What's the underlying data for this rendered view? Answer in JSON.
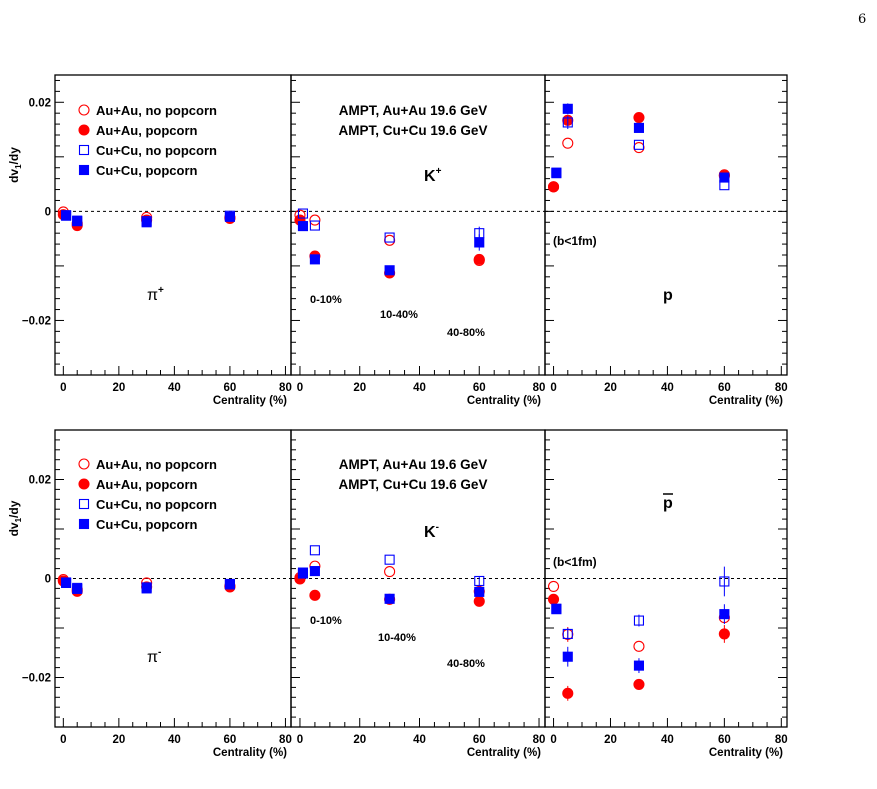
{
  "page_number": "6",
  "chart_data": {
    "type": "scatter",
    "x_ticks": [
      "0",
      "20",
      "40",
      "60",
      "80"
    ],
    "xlabel": "Centrality (%)",
    "ylabel": "dv1/dy",
    "ylabel_main": "dv",
    "ylabel_sub": "1",
    "ylabel_tail": "/dy",
    "xlim": [
      -3,
      82
    ],
    "legend_entries": [
      {
        "name": "Au+Au, no popcorn",
        "marker": "circle-open",
        "color": "#ff0000"
      },
      {
        "name": "Au+Au, popcorn",
        "marker": "circle-filled",
        "color": "#ff0000"
      },
      {
        "name": "Cu+Cu, no popcorn",
        "marker": "square-open",
        "color": "#0000ff"
      },
      {
        "name": "Cu+Cu, popcorn",
        "marker": "square-filled",
        "color": "#0000ff"
      }
    ],
    "model_labels": [
      {
        "text": "AMPT, Au+Au 19.6 GeV",
        "color": "#ff0000"
      },
      {
        "text": "AMPT, Cu+Cu 19.6 GeV",
        "color": "#0000ff"
      }
    ],
    "centrality_labels": [
      "0-10%",
      "10-40%",
      "40-80%"
    ],
    "impact_label": "(b<1fm)",
    "rows": [
      {
        "ylim": [
          -0.03,
          0.025
        ],
        "y_ticks": [
          {
            "v": 0.02,
            "label": "0.02"
          },
          {
            "v": 0,
            "label": "0"
          },
          {
            "v": -0.02,
            "label": "−0.02"
          }
        ],
        "panels": [
          {
            "particle": "π",
            "charge": "+",
            "annotations": [],
            "show_legend": true,
            "series": [
              {
                "name": "Au+Au, no popcorn",
                "x": [
                  0,
                  5,
                  30,
                  60
                ],
                "y": [
                  -0.0001,
                  -0.0022,
                  -0.0011,
                  -0.0011
                ],
                "err": [
                  0,
                  0,
                  0,
                  0
                ]
              },
              {
                "name": "Au+Au, popcorn",
                "x": [
                  0,
                  5,
                  30,
                  60
                ],
                "y": [
                  -0.0006,
                  -0.0026,
                  -0.0016,
                  -0.0013
                ],
                "err": [
                  0,
                  0,
                  0,
                  0
                ]
              },
              {
                "name": "Cu+Cu, no popcorn",
                "x": [
                  1,
                  5,
                  30,
                  60
                ],
                "y": [
                  -0.0007,
                  -0.0017,
                  -0.0018,
                  -0.0008
                ],
                "err": [
                  0,
                  0,
                  0,
                  0
                ]
              },
              {
                "name": "Cu+Cu, popcorn",
                "x": [
                  1,
                  5,
                  30,
                  60
                ],
                "y": [
                  -0.0008,
                  -0.0018,
                  -0.002,
                  -0.001
                ],
                "err": [
                  0,
                  0,
                  0,
                  0
                ]
              }
            ]
          },
          {
            "particle": "K",
            "charge": "+",
            "annotations": [
              "centrality",
              "model"
            ],
            "show_legend": false,
            "series": [
              {
                "name": "Au+Au, no popcorn",
                "x": [
                  0,
                  5,
                  30,
                  60
                ],
                "y": [
                  -0.0007,
                  -0.0016,
                  -0.0053,
                  -0.009
                ],
                "err": [
                  0,
                  0,
                  0,
                  0
                ]
              },
              {
                "name": "Au+Au, popcorn",
                "x": [
                  0,
                  5,
                  30,
                  60
                ],
                "y": [
                  -0.0016,
                  -0.0082,
                  -0.0113,
                  -0.0088
                ],
                "err": [
                  0,
                  0,
                  0,
                  0
                ]
              },
              {
                "name": "Cu+Cu, no popcorn",
                "x": [
                  1,
                  5,
                  30,
                  60
                ],
                "y": [
                  -0.0004,
                  -0.0026,
                  -0.0048,
                  -0.004
                ],
                "err": [
                  0,
                  0,
                  0,
                  0.0012
                ]
              },
              {
                "name": "Cu+Cu, popcorn",
                "x": [
                  1,
                  5,
                  30,
                  60
                ],
                "y": [
                  -0.0027,
                  -0.0088,
                  -0.0108,
                  -0.0057
                ],
                "err": [
                  0,
                  0,
                  0,
                  0.0015
                ]
              }
            ]
          },
          {
            "particle": "p",
            "charge": "",
            "annotations": [
              "impact"
            ],
            "show_legend": false,
            "series": [
              {
                "name": "Au+Au, no popcorn",
                "x": [
                  0,
                  5,
                  30,
                  60
                ],
                "y": [
                  0.0045,
                  0.0125,
                  0.0117,
                  0.0067
                ],
                "err": [
                  0,
                  0,
                  0,
                  0
                ]
              },
              {
                "name": "Au+Au, popcorn",
                "x": [
                  0,
                  5,
                  30,
                  60
                ],
                "y": [
                  0.0045,
                  0.0167,
                  0.0172,
                  0.0065
                ],
                "err": [
                  0,
                  0,
                  0,
                  0
                ]
              },
              {
                "name": "Cu+Cu, no popcorn",
                "x": [
                  1,
                  5,
                  30,
                  60
                ],
                "y": [
                  0.007,
                  0.0163,
                  0.0122,
                  0.0048
                ],
                "err": [
                  0,
                  0.0012,
                  0,
                  0
                ]
              },
              {
                "name": "Cu+Cu, popcorn",
                "x": [
                  1,
                  5,
                  30,
                  60
                ],
                "y": [
                  0.0071,
                  0.0188,
                  0.0153,
                  0.0062
                ],
                "err": [
                  0,
                  0.001,
                  0,
                  0
                ]
              }
            ]
          }
        ]
      },
      {
        "ylim": [
          -0.03,
          0.03
        ],
        "y_ticks": [
          {
            "v": 0.02,
            "label": "0.02"
          },
          {
            "v": 0,
            "label": "0"
          },
          {
            "v": -0.02,
            "label": "−0.02"
          }
        ],
        "panels": [
          {
            "particle": "π",
            "charge": "-",
            "annotations": [],
            "show_legend": true,
            "series": [
              {
                "name": "Au+Au, no popcorn",
                "x": [
                  0,
                  5,
                  30,
                  60
                ],
                "y": [
                  -0.0002,
                  -0.0022,
                  -0.0009,
                  -0.0015
                ],
                "err": [
                  0,
                  0,
                  0,
                  0
                ]
              },
              {
                "name": "Au+Au, popcorn",
                "x": [
                  0,
                  5,
                  30,
                  60
                ],
                "y": [
                  -0.0005,
                  -0.0026,
                  -0.0017,
                  -0.0017
                ],
                "err": [
                  0,
                  0,
                  0,
                  0
                ]
              },
              {
                "name": "Cu+Cu, no popcorn",
                "x": [
                  1,
                  5,
                  30,
                  60
                ],
                "y": [
                  -0.0008,
                  -0.0019,
                  -0.0018,
                  -0.0011
                ],
                "err": [
                  0,
                  0,
                  0,
                  0
                ]
              },
              {
                "name": "Cu+Cu, popcorn",
                "x": [
                  1,
                  5,
                  30,
                  60
                ],
                "y": [
                  -0.0009,
                  -0.0021,
                  -0.002,
                  -0.0012
                ],
                "err": [
                  0,
                  0,
                  0,
                  0
                ]
              }
            ]
          },
          {
            "particle": "K",
            "charge": "-",
            "annotations": [
              "centrality",
              "model"
            ],
            "show_legend": false,
            "series": [
              {
                "name": "Au+Au, no popcorn",
                "x": [
                  0,
                  5,
                  30,
                  60
                ],
                "y": [
                  0.0002,
                  0.0025,
                  0.0014,
                  -0.0026
                ],
                "err": [
                  0,
                  0,
                  0,
                  0
                ]
              },
              {
                "name": "Au+Au, popcorn",
                "x": [
                  0,
                  5,
                  30,
                  60
                ],
                "y": [
                  -0.0001,
                  -0.0034,
                  -0.0042,
                  -0.0046
                ],
                "err": [
                  0,
                  0,
                  0,
                  0
                ]
              },
              {
                "name": "Cu+Cu, no popcorn",
                "x": [
                  1,
                  5,
                  30,
                  60
                ],
                "y": [
                  0.001,
                  0.0057,
                  0.0038,
                  -0.0005
                ],
                "err": [
                  0,
                  0,
                  0,
                  0.001
                ]
              },
              {
                "name": "Cu+Cu, popcorn",
                "x": [
                  1,
                  5,
                  30,
                  60
                ],
                "y": [
                  0.0012,
                  0.0015,
                  -0.0041,
                  -0.0027
                ],
                "err": [
                  0,
                  0,
                  0,
                  0.001
                ]
              }
            ]
          },
          {
            "particle": "p",
            "charge": "bar",
            "annotations": [
              "impact"
            ],
            "show_legend": false,
            "series": [
              {
                "name": "Au+Au, no popcorn",
                "x": [
                  0,
                  5,
                  30,
                  60
                ],
                "y": [
                  -0.0016,
                  -0.0113,
                  -0.0137,
                  -0.0079
                ],
                "err": [
                  0,
                  0.0015,
                  0,
                  0
                ]
              },
              {
                "name": "Au+Au, popcorn",
                "x": [
                  0,
                  5,
                  30,
                  60
                ],
                "y": [
                  -0.0042,
                  -0.0232,
                  -0.0214,
                  -0.0112
                ],
                "err": [
                  0,
                  0.0015,
                  0,
                  0.0018
                ]
              },
              {
                "name": "Cu+Cu, no popcorn",
                "x": [
                  1,
                  5,
                  30,
                  60
                ],
                "y": [
                  -0.0061,
                  -0.0112,
                  -0.0085,
                  -0.0006
                ],
                "err": [
                  0,
                  0.0012,
                  0.0012,
                  0.003
                ]
              },
              {
                "name": "Cu+Cu, popcorn",
                "x": [
                  1,
                  5,
                  30,
                  60
                ],
                "y": [
                  -0.0062,
                  -0.0158,
                  -0.0176,
                  -0.0072
                ],
                "err": [
                  0,
                  0.002,
                  0.0015,
                  0.002
                ]
              }
            ]
          }
        ]
      }
    ]
  }
}
